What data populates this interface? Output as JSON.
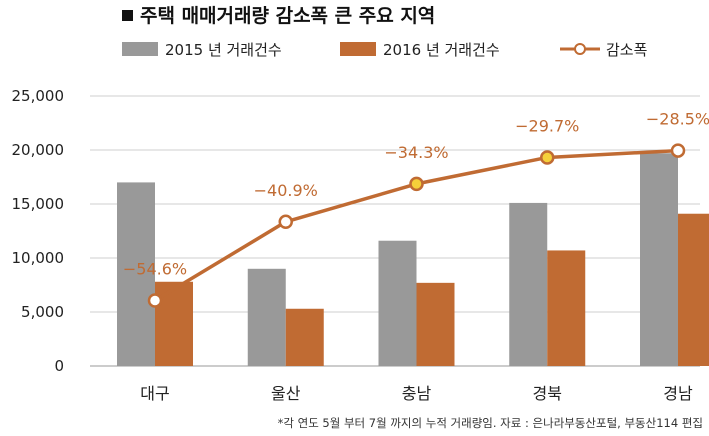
{
  "chart_data": {
    "type": "bar",
    "title": "주택 매매거래량 감소폭 큰 주요 지역",
    "categories": [
      "대구",
      "울산",
      "충남",
      "경북",
      "경남"
    ],
    "series": [
      {
        "name": "2015 년  거래건수",
        "type": "bar",
        "color": "#999999",
        "values": [
          17000,
          9000,
          11600,
          15100,
          19700
        ]
      },
      {
        "name": "2016 년  거래건수",
        "type": "bar",
        "color": "#c06b33",
        "values": [
          7800,
          5300,
          7700,
          10700,
          14100
        ]
      },
      {
        "name": "감소폭",
        "type": "line",
        "color": "#c06b33",
        "values": [
          -54.6,
          -40.9,
          -34.3,
          -29.7,
          -28.5
        ],
        "labels": [
          "−54.6%",
          "−40.9%",
          "−34.3%",
          "−29.7%",
          "−28.5%"
        ]
      }
    ],
    "ylim": [
      0,
      25000
    ],
    "yticks": [
      0,
      5000,
      10000,
      15000,
      20000,
      25000
    ],
    "ytick_labels": [
      "0",
      "5,000",
      "10,000",
      "15,000",
      "20,000",
      "25,000"
    ],
    "line_ylim": [
      -66,
      -19
    ],
    "grid": true,
    "legend_position": "top",
    "marker_fills": [
      "#ffffff",
      "#ffffff",
      "#f5d03a",
      "#f5d03a",
      "#ffffff"
    ],
    "footnote": "*각 연도 5월 부터 7월 까지의 누적 거래량임. 자료 : 은나라부동산포털, 부동산114 편집"
  }
}
